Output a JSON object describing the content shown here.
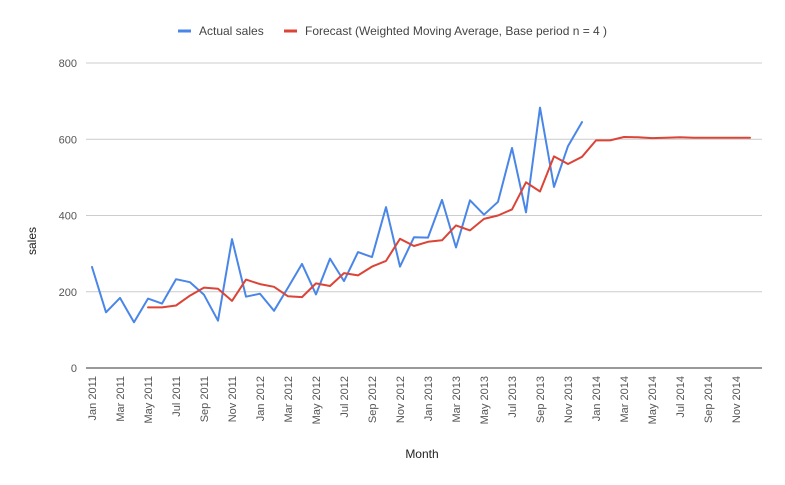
{
  "chart_data": {
    "type": "line",
    "xlabel": "Month",
    "ylabel": "sales",
    "ylim": [
      0,
      800
    ],
    "yticks": [
      0,
      200,
      400,
      600,
      800
    ],
    "grid": true,
    "legend_position": "top",
    "x": [
      "Jan 2011",
      "Feb 2011",
      "Mar 2011",
      "Apr 2011",
      "May 2011",
      "Jun 2011",
      "Jul 2011",
      "Aug 2011",
      "Sep 2011",
      "Oct 2011",
      "Nov 2011",
      "Dec 2011",
      "Jan 2012",
      "Feb 2012",
      "Mar 2012",
      "Apr 2012",
      "May 2012",
      "Jun 2012",
      "Jul 2012",
      "Aug 2012",
      "Sep 2012",
      "Oct 2012",
      "Nov 2012",
      "Dec 2012",
      "Jan 2013",
      "Feb 2013",
      "Mar 2013",
      "Apr 2013",
      "May 2013",
      "Jun 2013",
      "Jul 2013",
      "Aug 2013",
      "Sep 2013",
      "Oct 2013",
      "Nov 2013",
      "Dec 2013",
      "Jan 2014",
      "Feb 2014",
      "Mar 2014",
      "Apr 2014",
      "May 2014",
      "Jun 2014",
      "Jul 2014",
      "Aug 2014",
      "Sep 2014",
      "Oct 2014",
      "Nov 2014",
      "Dec 2014"
    ],
    "xtick_labels": [
      "Jan 2011",
      "Mar 2011",
      "May 2011",
      "Jul 2011",
      "Sep 2011",
      "Nov 2011",
      "Jan 2012",
      "Mar 2012",
      "May 2012",
      "Jul 2012",
      "Sep 2012",
      "Nov 2012",
      "Jan 2013",
      "Mar 2013",
      "May 2013",
      "Jul 2013",
      "Sep 2013",
      "Nov 2013",
      "Jan 2014",
      "Mar 2014",
      "May 2014",
      "Jul 2014",
      "Sep 2014",
      "Nov 2014"
    ],
    "series": [
      {
        "name": "Actual sales",
        "color": "#4a86e8",
        "values": [
          265,
          146,
          184,
          120,
          182,
          169,
          233,
          225,
          192,
          124,
          338,
          187,
          195,
          150,
          211,
          273,
          193,
          287,
          228,
          304,
          291,
          422,
          266,
          343,
          342,
          441,
          316,
          440,
          402,
          436,
          577,
          408,
          683,
          475,
          582,
          645,
          null,
          null,
          null,
          null,
          null,
          null,
          null,
          null,
          null,
          null,
          null,
          null
        ]
      },
      {
        "name": "Forecast (Weighted Moving Average, Base period n = 4  )",
        "color": "#db4437",
        "values": [
          null,
          null,
          null,
          null,
          159,
          159,
          164,
          190,
          211,
          208,
          176,
          232,
          220,
          213,
          188,
          186,
          222,
          215,
          249,
          243,
          266,
          281,
          339,
          320,
          331,
          335,
          374,
          361,
          391,
          400,
          416,
          487,
          463,
          555,
          535,
          554,
          597,
          597,
          606,
          605,
          603,
          604,
          605,
          604,
          604,
          604,
          604,
          604
        ]
      }
    ]
  }
}
